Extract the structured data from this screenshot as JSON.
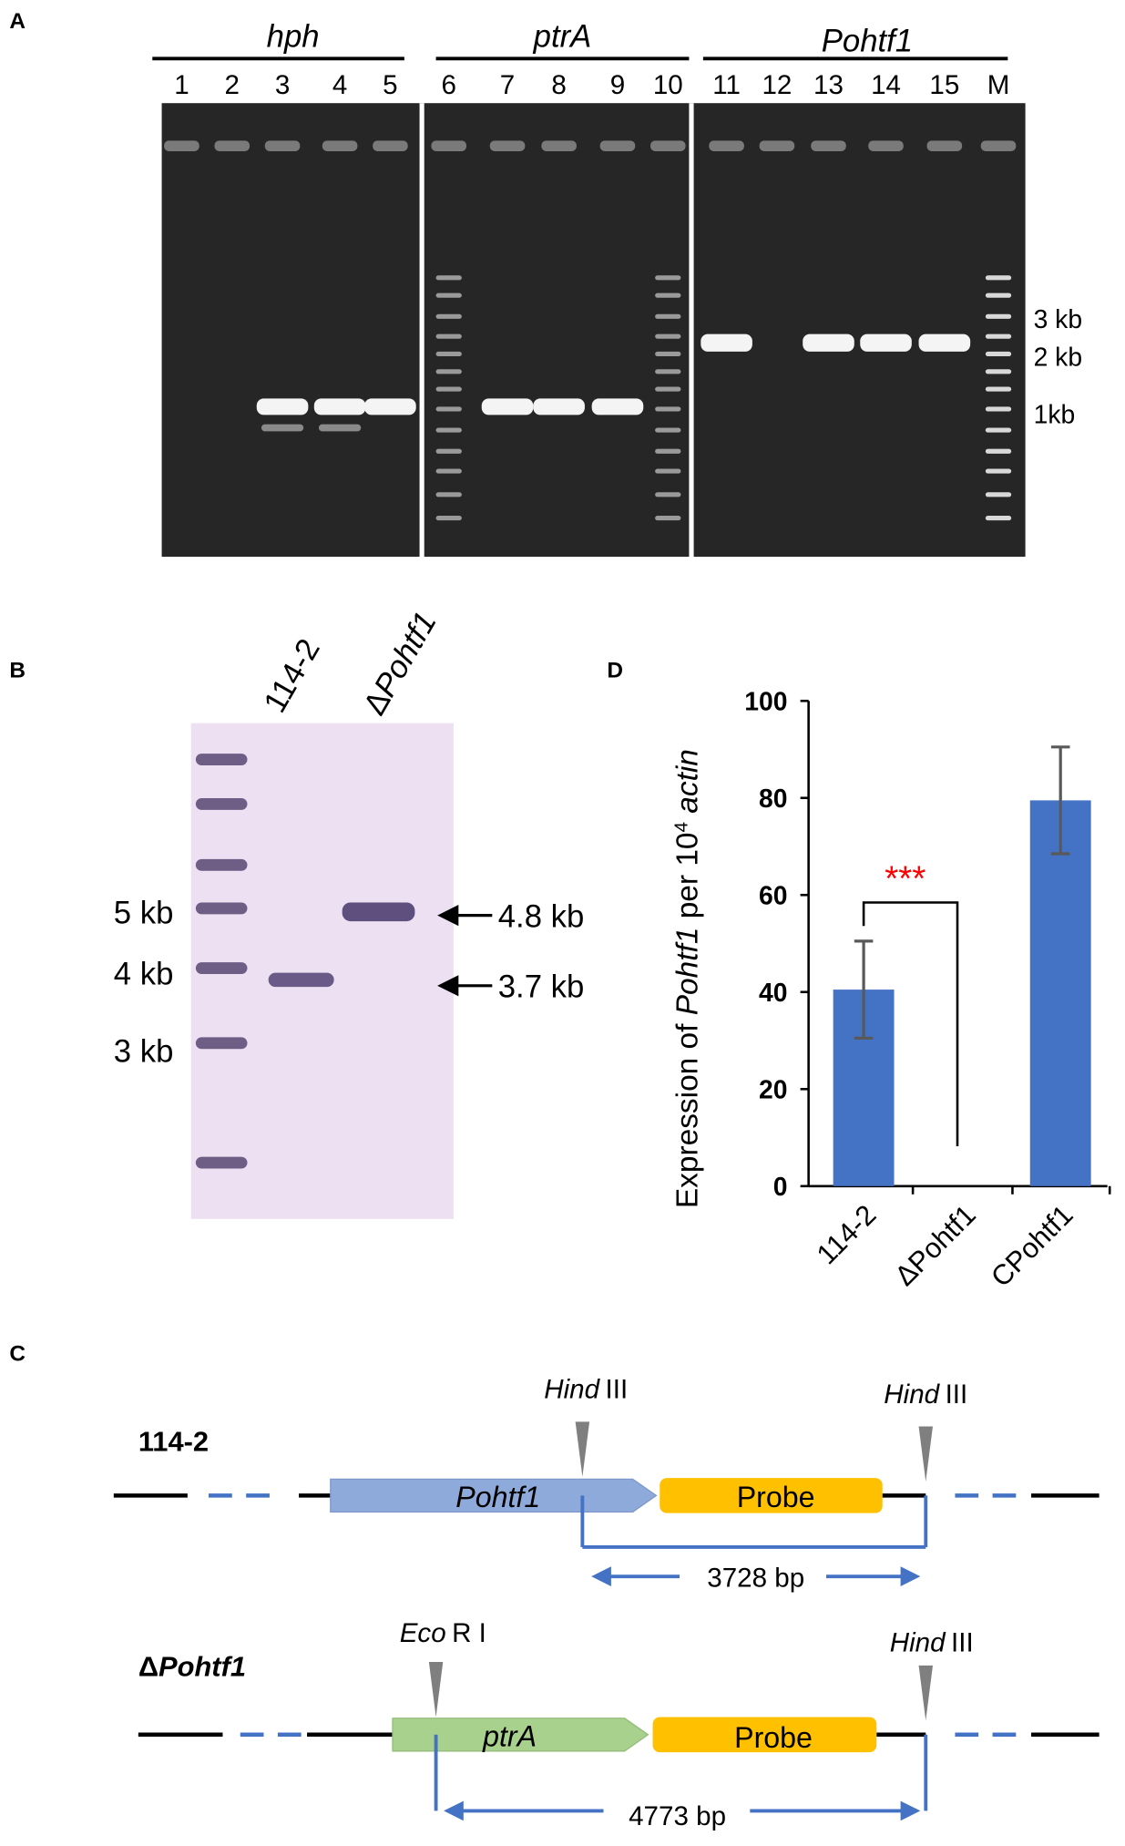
{
  "panel_a": {
    "label": "A",
    "groups": [
      "hph",
      "ptrA",
      "Pohtf1"
    ],
    "lanes": [
      "1",
      "2",
      "3",
      "4",
      "5",
      "6",
      "7",
      "8",
      "9",
      "10",
      "11",
      "12",
      "13",
      "14",
      "15",
      "M"
    ],
    "size_markers": [
      "3 kb",
      "2 kb",
      "1kb"
    ]
  },
  "panel_b": {
    "label": "B",
    "lane_1": "114-2",
    "lane_2_symbol": "Δ",
    "lane_2_gene": "Pohtf1",
    "size_markers": [
      "5 kb",
      "4 kb",
      "3 kb"
    ],
    "band_sizes": [
      "4.8 kb",
      "3.7 kb"
    ]
  },
  "panel_c": {
    "label": "C",
    "constructs": [
      {
        "strain": "114-2",
        "gene": "Pohtf1",
        "probe": "Probe",
        "sites": [
          {
            "enzyme": "Hind",
            "number": "III"
          },
          {
            "enzyme": "Hind",
            "number": "III"
          }
        ],
        "distance": "3728 bp"
      },
      {
        "strain_symbol": "Δ",
        "strain": "Pohtf1",
        "gene": "ptrA",
        "probe": "Probe",
        "sites": [
          {
            "enzyme": "Eco",
            "number": "R I"
          },
          {
            "enzyme": "Hind",
            "number": "III"
          }
        ],
        "distance": "4773 bp"
      }
    ]
  },
  "chart_data": {
    "type": "bar",
    "panel_label": "D",
    "y_label": [
      "Expression of ",
      "Pohtf1",
      " per 10",
      "4",
      " ",
      "actin"
    ],
    "categories": [
      "114-2",
      "ΔPohtf1",
      "CPohtf1"
    ],
    "values": [
      40.5,
      0,
      79.5
    ],
    "errors": [
      10,
      null,
      11
    ],
    "color": "#4472c4",
    "ylim": [
      0,
      100
    ],
    "yticks": [
      0,
      20,
      40,
      60,
      80,
      100
    ],
    "annotation": "***",
    "annotation_color": "#ff0000"
  }
}
